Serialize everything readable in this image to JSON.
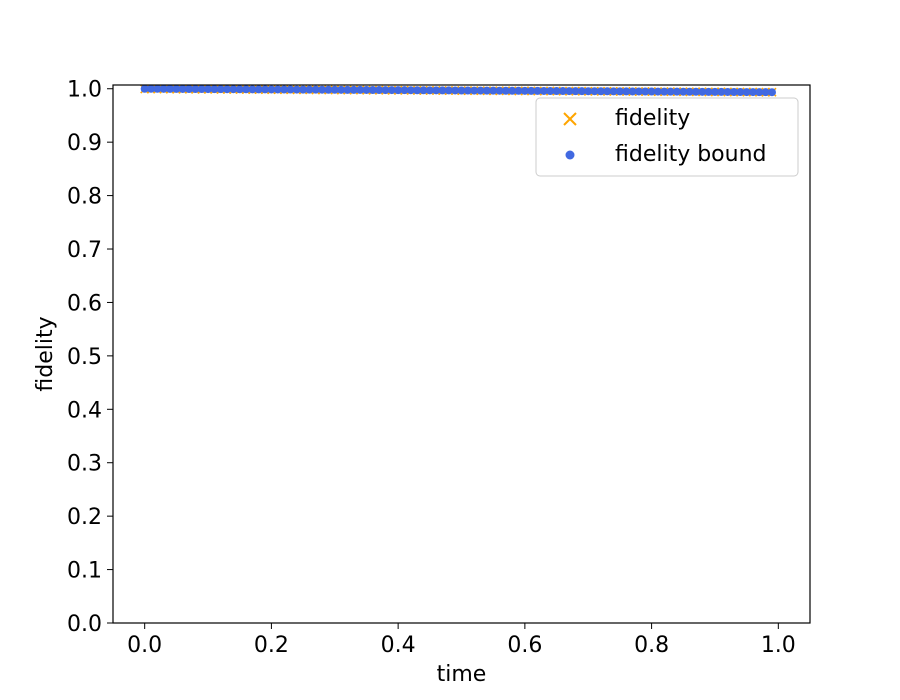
{
  "chart_data": {
    "type": "scatter",
    "title": "",
    "xlabel": "time",
    "ylabel": "fidelity",
    "xlim": [
      -0.05,
      1.05
    ],
    "ylim": [
      0.0,
      1.007
    ],
    "xticks": [
      0.0,
      0.2,
      0.4,
      0.6,
      0.8,
      1.0
    ],
    "xtick_labels": [
      "0.0",
      "0.2",
      "0.4",
      "0.6",
      "0.8",
      "1.0"
    ],
    "yticks": [
      0.0,
      0.1,
      0.2,
      0.3,
      0.4,
      0.5,
      0.6,
      0.7,
      0.8,
      0.9,
      1.0
    ],
    "ytick_labels": [
      "0.0",
      "0.1",
      "0.2",
      "0.3",
      "0.4",
      "0.5",
      "0.6",
      "0.7",
      "0.8",
      "0.9",
      "1.0"
    ],
    "grid": false,
    "legend_position": "top-right",
    "series": [
      {
        "name": "fidelity",
        "marker": "x",
        "color": "#ffa500",
        "x_start": 0.0,
        "x_end": 0.99,
        "num_points": 100,
        "y_start": 0.9995,
        "y_end": 0.9935
      },
      {
        "name": "fidelity bound",
        "marker": "o",
        "color": "#4169e1",
        "x_start": 0.0,
        "x_end": 0.99,
        "num_points": 100,
        "y_start": 1.0,
        "y_end": 0.9935
      }
    ]
  }
}
